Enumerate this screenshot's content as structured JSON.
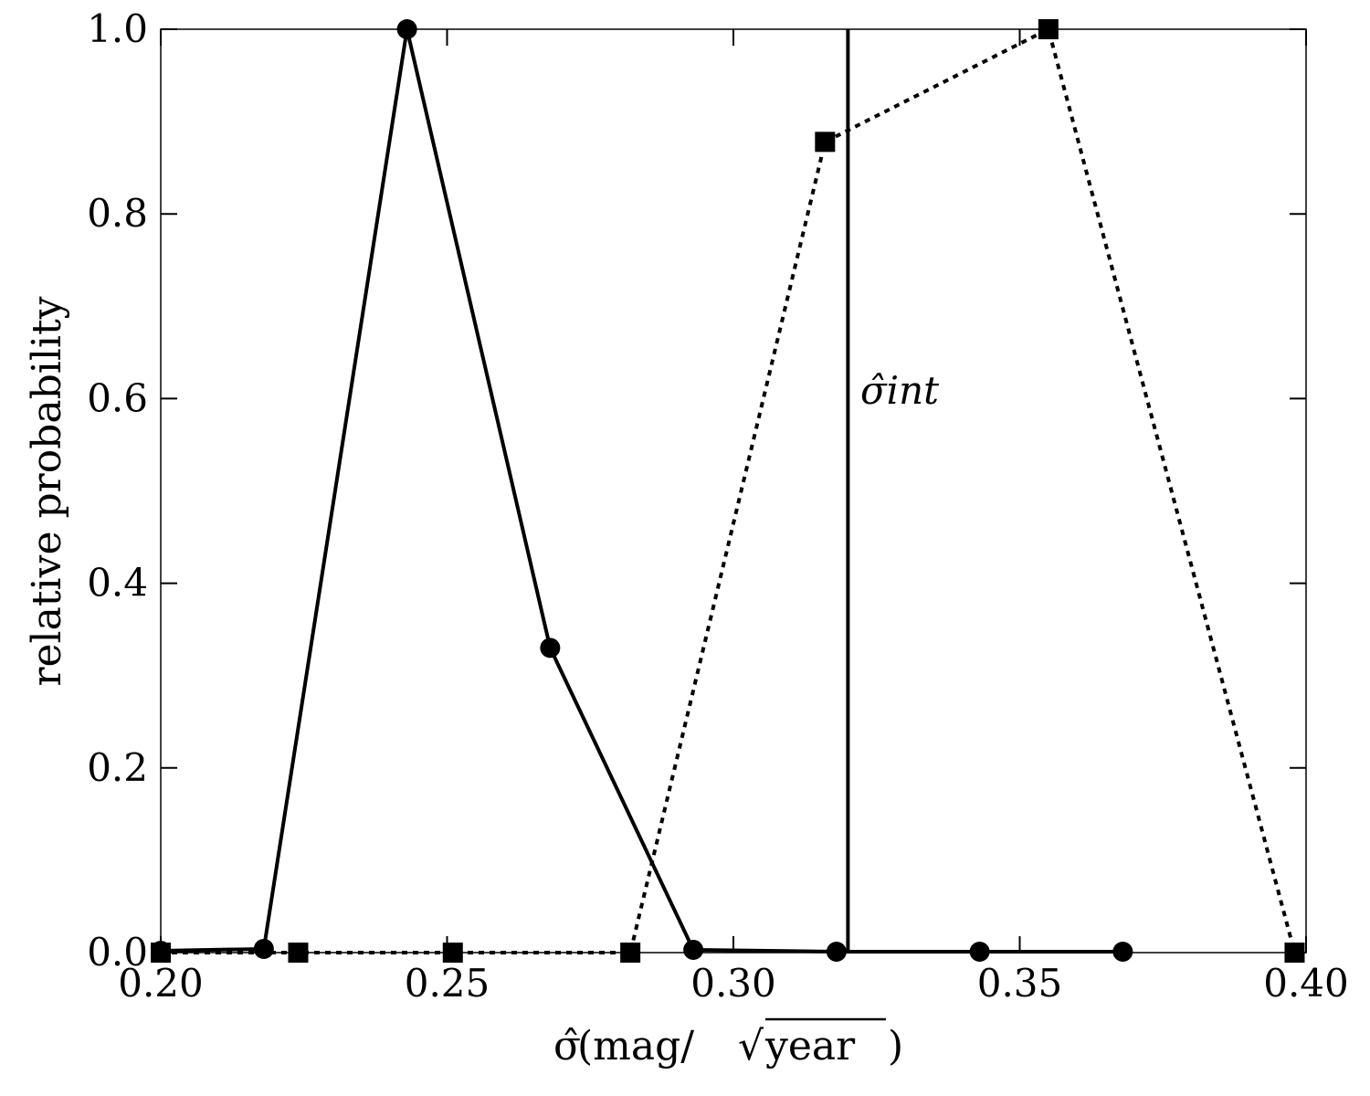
{
  "chart_data": {
    "type": "line",
    "xlabel": "σ̂(mag/√year)",
    "ylabel": "relative probability",
    "xlim": [
      0.2,
      0.4
    ],
    "ylim": [
      0.0,
      1.0
    ],
    "x_ticks": [
      "0.20",
      "0.25",
      "0.30",
      "0.35",
      "0.40"
    ],
    "y_ticks": [
      "0.0",
      "0.2",
      "0.4",
      "0.6",
      "0.8",
      "1.0"
    ],
    "grid": false,
    "series": [
      {
        "line_style": "solid",
        "marker": "circle",
        "color": "#000000",
        "x": [
          0.2,
          0.218,
          0.243,
          0.268,
          0.293,
          0.318,
          0.343,
          0.368
        ],
        "y": [
          0.002,
          0.004,
          1.0,
          0.33,
          0.003,
          0.001,
          0.001,
          0.001
        ]
      },
      {
        "line_style": "dotted",
        "marker": "square",
        "color": "#000000",
        "x": [
          0.2,
          0.224,
          0.251,
          0.282,
          0.316,
          0.355,
          0.398
        ],
        "y": [
          0.0,
          0.0,
          0.0,
          0.0,
          0.878,
          1.0,
          0.0
        ]
      }
    ],
    "vline": {
      "x": 0.32,
      "label": "σ̂int"
    }
  }
}
